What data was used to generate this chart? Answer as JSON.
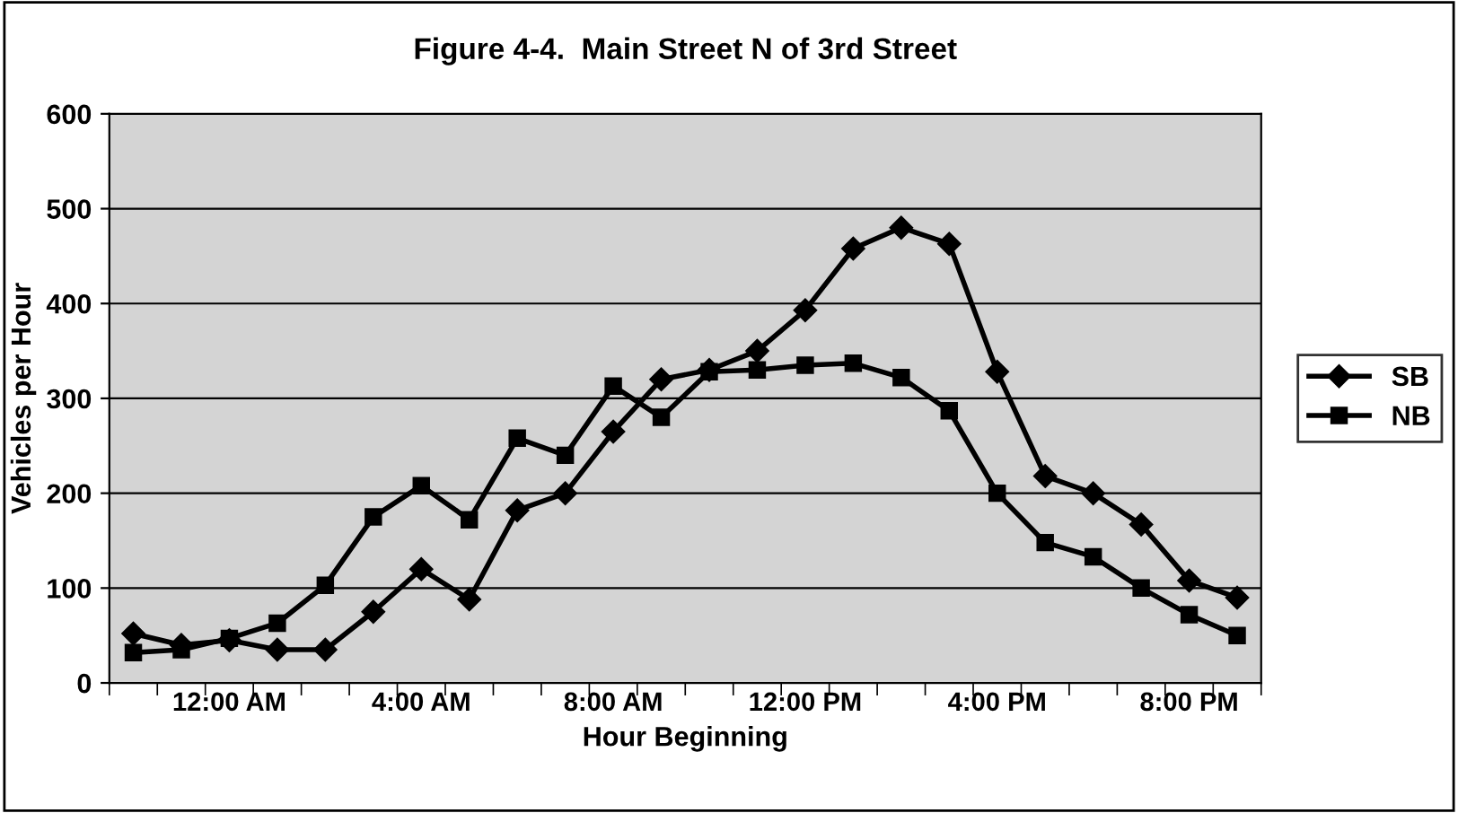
{
  "chart_data": {
    "type": "line",
    "title": "Figure 4-4.  Main Street N of 3rd Street",
    "xlabel": "Hour Beginning",
    "ylabel": "Vehicles per Hour",
    "categories": [
      null,
      null,
      "12:00 AM",
      null,
      null,
      null,
      "4:00 AM",
      null,
      null,
      null,
      "8:00 AM",
      null,
      null,
      null,
      "12:00 PM",
      null,
      null,
      null,
      "4:00 PM",
      null,
      null,
      null,
      "8:00 PM",
      null
    ],
    "series": [
      {
        "name": "SB",
        "color": "#000000",
        "marker": "diamond",
        "values": [
          52,
          40,
          45,
          35,
          35,
          75,
          120,
          88,
          182,
          200,
          265,
          320,
          330,
          350,
          393,
          458,
          480,
          463,
          328,
          218,
          200,
          167,
          108,
          90
        ]
      },
      {
        "name": "NB",
        "color": "#000000",
        "marker": "square",
        "values": [
          32,
          35,
          47,
          63,
          103,
          175,
          208,
          172,
          258,
          240,
          313,
          280,
          328,
          330,
          335,
          337,
          322,
          287,
          200,
          148,
          133,
          100,
          72,
          50
        ]
      }
    ],
    "ylim": [
      0,
      600
    ],
    "yticks": [
      0,
      100,
      200,
      300,
      400,
      500,
      600
    ],
    "grid": "y",
    "legend": "right",
    "line_style": "solid"
  }
}
